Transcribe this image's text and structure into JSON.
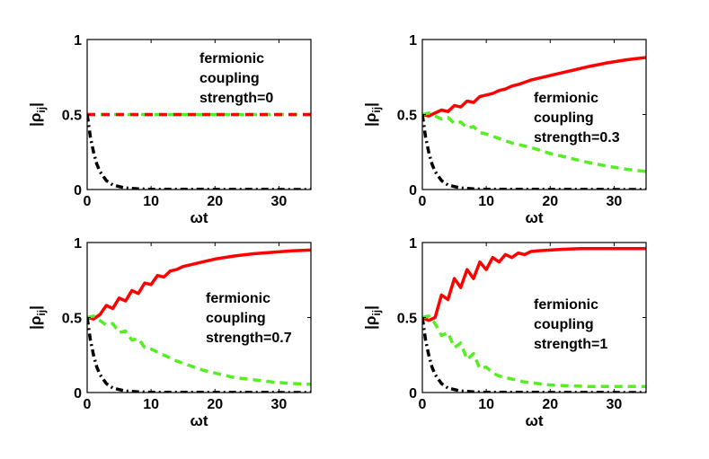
{
  "colors": {
    "red": "#ff0000",
    "green": "#55ee22",
    "black": "#000000"
  },
  "chart_data": [
    {
      "type": "line",
      "xlabel": "ωt",
      "ylabel_main": "|ρ",
      "ylabel_sub": "ij",
      "ylabel_end": "|",
      "xlim": [
        0,
        35
      ],
      "ylim": [
        0,
        1
      ],
      "xticks": [
        "0",
        "10",
        "20",
        "30"
      ],
      "yticks": [
        "0",
        "0.5",
        "1"
      ],
      "annotation": [
        "fermionic",
        "coupling",
        "strength=0"
      ],
      "series": [
        {
          "name": "green-dashed",
          "style": "dashed",
          "color": "#55ee22",
          "x": [
            0,
            35
          ],
          "y": [
            0.5,
            0.5
          ]
        },
        {
          "name": "red-solid",
          "style": "dashdot-overlay",
          "color": "#ff0000",
          "x": [
            0,
            35
          ],
          "y": [
            0.5,
            0.5
          ]
        },
        {
          "name": "black-dashdot",
          "style": "dashdot",
          "color": "#000000",
          "x": [
            0,
            0.5,
            1,
            1.5,
            2,
            3,
            4,
            5,
            6,
            8,
            10,
            35
          ],
          "y": [
            0.5,
            0.35,
            0.25,
            0.17,
            0.12,
            0.06,
            0.03,
            0.02,
            0.01,
            0.005,
            0.002,
            0.0
          ]
        }
      ]
    },
    {
      "type": "line",
      "xlabel": "ωt",
      "ylabel_main": "|ρ",
      "ylabel_sub": "ij",
      "ylabel_end": "|",
      "xlim": [
        0,
        35
      ],
      "ylim": [
        0,
        1
      ],
      "xticks": [
        "0",
        "10",
        "20",
        "30"
      ],
      "yticks": [
        "0",
        "0.5",
        "1"
      ],
      "annotation": [
        "fermionic",
        "coupling",
        "strength=0.3"
      ],
      "series": [
        {
          "name": "red-solid",
          "style": "solid",
          "color": "#ff0000",
          "x": [
            0,
            1,
            2,
            3,
            4,
            5,
            6,
            7,
            8,
            9,
            10,
            11,
            12,
            13,
            14,
            15,
            17,
            20,
            23,
            26,
            29,
            32,
            35
          ],
          "y": [
            0.5,
            0.49,
            0.51,
            0.53,
            0.52,
            0.56,
            0.55,
            0.59,
            0.58,
            0.62,
            0.63,
            0.64,
            0.66,
            0.67,
            0.69,
            0.7,
            0.73,
            0.76,
            0.79,
            0.82,
            0.845,
            0.865,
            0.88
          ]
        },
        {
          "name": "green-dashed",
          "style": "dashed",
          "color": "#55ee22",
          "x": [
            0,
            1,
            2,
            3,
            4,
            5,
            6,
            7,
            8,
            9,
            10,
            12,
            14,
            17,
            20,
            23,
            26,
            29,
            32,
            35
          ],
          "y": [
            0.5,
            0.51,
            0.49,
            0.47,
            0.48,
            0.44,
            0.45,
            0.41,
            0.42,
            0.38,
            0.37,
            0.34,
            0.31,
            0.28,
            0.24,
            0.21,
            0.18,
            0.155,
            0.135,
            0.12
          ]
        },
        {
          "name": "black-dashdot",
          "style": "dashdot",
          "color": "#000000",
          "x": [
            0,
            0.5,
            1,
            1.5,
            2,
            3,
            4,
            5,
            6,
            8,
            10,
            35
          ],
          "y": [
            0.5,
            0.35,
            0.25,
            0.17,
            0.12,
            0.06,
            0.03,
            0.02,
            0.01,
            0.005,
            0.002,
            0.0
          ]
        }
      ]
    },
    {
      "type": "line",
      "xlabel": "ωt",
      "ylabel_main": "|ρ",
      "ylabel_sub": "ij",
      "ylabel_end": "|",
      "xlim": [
        0,
        35
      ],
      "ylim": [
        0,
        1
      ],
      "xticks": [
        "0",
        "10",
        "20",
        "30"
      ],
      "yticks": [
        "0",
        "0.5",
        "1"
      ],
      "annotation": [
        "fermionic",
        "coupling",
        "strength=0.7"
      ],
      "series": [
        {
          "name": "red-solid",
          "style": "solid",
          "color": "#ff0000",
          "x": [
            0,
            1,
            2,
            3,
            4,
            5,
            6,
            7,
            8,
            9,
            10,
            11,
            12,
            13,
            14,
            15,
            16,
            18,
            20,
            23,
            26,
            29,
            32,
            35
          ],
          "y": [
            0.5,
            0.49,
            0.52,
            0.58,
            0.56,
            0.63,
            0.61,
            0.68,
            0.66,
            0.73,
            0.72,
            0.78,
            0.77,
            0.81,
            0.82,
            0.84,
            0.85,
            0.87,
            0.89,
            0.91,
            0.925,
            0.935,
            0.945,
            0.95
          ]
        },
        {
          "name": "green-dashed",
          "style": "dashed",
          "color": "#55ee22",
          "x": [
            0,
            1,
            2,
            3,
            4,
            5,
            6,
            7,
            8,
            9,
            10,
            12,
            14,
            16,
            18,
            20,
            23,
            26,
            29,
            32,
            35
          ],
          "y": [
            0.5,
            0.51,
            0.48,
            0.45,
            0.46,
            0.4,
            0.41,
            0.35,
            0.36,
            0.3,
            0.29,
            0.25,
            0.21,
            0.18,
            0.15,
            0.13,
            0.1,
            0.085,
            0.07,
            0.06,
            0.055
          ]
        },
        {
          "name": "black-dashdot",
          "style": "dashdot",
          "color": "#000000",
          "x": [
            0,
            0.5,
            1,
            1.5,
            2,
            3,
            4,
            5,
            6,
            8,
            10,
            35
          ],
          "y": [
            0.5,
            0.35,
            0.25,
            0.17,
            0.12,
            0.06,
            0.03,
            0.02,
            0.01,
            0.005,
            0.002,
            0.0
          ]
        }
      ]
    },
    {
      "type": "line",
      "xlabel": "ωt",
      "ylabel_main": "|ρ",
      "ylabel_sub": "ij",
      "ylabel_end": "|",
      "xlim": [
        0,
        35
      ],
      "ylim": [
        0,
        1
      ],
      "xticks": [
        "0",
        "10",
        "20",
        "30"
      ],
      "yticks": [
        "0",
        "0.5",
        "1"
      ],
      "annotation": [
        "fermionic",
        "coupling",
        "strength=1"
      ],
      "series": [
        {
          "name": "red-solid",
          "style": "solid",
          "color": "#ff0000",
          "x": [
            0,
            1,
            2,
            3,
            4,
            5,
            6,
            7,
            8,
            9,
            10,
            11,
            12,
            13,
            14,
            15,
            16,
            17,
            18,
            20,
            22,
            25,
            28,
            31,
            35
          ],
          "y": [
            0.5,
            0.48,
            0.5,
            0.65,
            0.62,
            0.76,
            0.7,
            0.82,
            0.76,
            0.87,
            0.82,
            0.9,
            0.87,
            0.92,
            0.9,
            0.93,
            0.92,
            0.94,
            0.945,
            0.95,
            0.955,
            0.96,
            0.96,
            0.96,
            0.96
          ]
        },
        {
          "name": "green-dashed",
          "style": "dashed",
          "color": "#55ee22",
          "x": [
            0,
            1,
            2,
            3,
            4,
            5,
            6,
            7,
            8,
            9,
            10,
            11,
            12,
            14,
            16,
            18,
            20,
            23,
            26,
            30,
            35
          ],
          "y": [
            0.5,
            0.51,
            0.46,
            0.38,
            0.4,
            0.3,
            0.33,
            0.22,
            0.26,
            0.16,
            0.17,
            0.13,
            0.11,
            0.09,
            0.07,
            0.06,
            0.05,
            0.045,
            0.04,
            0.04,
            0.04
          ]
        },
        {
          "name": "black-dashdot",
          "style": "dashdot",
          "color": "#000000",
          "x": [
            0,
            0.5,
            1,
            1.5,
            2,
            3,
            4,
            5,
            6,
            8,
            10,
            35
          ],
          "y": [
            0.5,
            0.35,
            0.25,
            0.17,
            0.12,
            0.06,
            0.03,
            0.02,
            0.01,
            0.005,
            0.002,
            0.0
          ]
        }
      ]
    }
  ]
}
